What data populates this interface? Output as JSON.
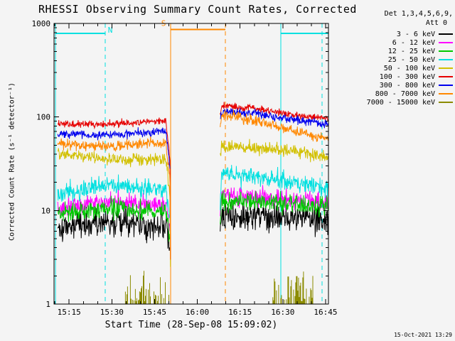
{
  "footer": {
    "timestamp": "15-Oct-2021 13:29"
  },
  "legend": {
    "header_line1": "Det 1,3,4,5,6,9,",
    "header_line2": "Att 0"
  },
  "chart_data": {
    "type": "line",
    "title": "RHESSI Observing Summary Count Rates, Corrected",
    "xlabel": "Start Time (28-Sep-08 15:09:02)",
    "ylabel": "Corrected Count Rate (s⁻¹ detector⁻¹)",
    "y_scale": "log",
    "ylim": [
      1,
      1000
    ],
    "grid": false,
    "legend_position": "top-right",
    "x_time_reference": "minutes after 15:00",
    "x_domain": {
      "t0": 9.7,
      "t1": 106
    },
    "x_ticks": [
      {
        "t": 15,
        "label": "15:15"
      },
      {
        "t": 30,
        "label": "15:30"
      },
      {
        "t": 45,
        "label": "15:45"
      },
      {
        "t": 60,
        "label": "16:00"
      },
      {
        "t": 75,
        "label": "16:15"
      },
      {
        "t": 90,
        "label": "16:30"
      },
      {
        "t": 105,
        "label": "16:45"
      }
    ],
    "y_ticks": [
      {
        "v": 1,
        "label": "1"
      },
      {
        "v": 10,
        "label": "10"
      },
      {
        "v": 100,
        "label": "100"
      },
      {
        "v": 1000,
        "label": "1000"
      }
    ],
    "annotations": {
      "bars": [
        {
          "name": "night-flag-bar-1",
          "color": "#00e0e0",
          "t0": 10.2,
          "t1": 27.7,
          "v": 780
        },
        {
          "name": "saa-flag-bar",
          "color": "#ff8800",
          "t0": 50.6,
          "t1": 69.8,
          "v": 860
        },
        {
          "name": "night-flag-bar-2",
          "color": "#00e0e0",
          "t0": 89.3,
          "t1": 106,
          "v": 780
        }
      ],
      "labels": [
        {
          "text": "N",
          "color": "#00e0e0",
          "t": 28.6,
          "v": 800
        },
        {
          "text": "S",
          "color": "#ff8800",
          "t": 47.3,
          "v": 940
        }
      ],
      "vlines": [
        {
          "t": 10.2,
          "color": "#00e0e0",
          "dashed": false
        },
        {
          "t": 27.7,
          "color": "#00e0e0",
          "dashed": true
        },
        {
          "t": 50.6,
          "color": "#ff8800",
          "dashed": false
        },
        {
          "t": 69.8,
          "color": "#ff8800",
          "dashed": true
        },
        {
          "t": 89.3,
          "color": "#00e0e0",
          "dashed": false
        },
        {
          "t": 103.7,
          "color": "#00e0e0",
          "dashed": true
        }
      ]
    },
    "series": [
      {
        "id": "3-6-kev",
        "label": "3 - 6 keV",
        "color": "#000000",
        "sigma": 0.075,
        "segments": [
          [
            [
              11,
              6.8
            ],
            [
              16,
              7.0
            ],
            [
              20,
              7.2
            ],
            [
              26,
              7.5
            ],
            [
              32,
              7.4
            ],
            [
              38,
              7.2
            ],
            [
              44,
              7.0
            ],
            [
              49,
              6.8
            ],
            [
              50.4,
              4.0
            ]
          ],
          [
            [
              68,
              5.5
            ],
            [
              68.5,
              9.3
            ],
            [
              72,
              9.2
            ],
            [
              78,
              9.0
            ],
            [
              85,
              8.8
            ],
            [
              92,
              8.6
            ],
            [
              99,
              8.3
            ],
            [
              106,
              8.0
            ]
          ]
        ]
      },
      {
        "id": "6-12-kev",
        "label": "6 - 12 keV",
        "color": "#ff00ff",
        "sigma": 0.05,
        "segments": [
          [
            [
              11,
              11.0
            ],
            [
              17,
              11.3
            ],
            [
              22,
              11.8
            ],
            [
              27,
              12.3
            ],
            [
              32,
              12.5
            ],
            [
              37,
              12.2
            ],
            [
              42,
              11.8
            ],
            [
              49,
              11.6
            ],
            [
              50.4,
              6.0
            ]
          ],
          [
            [
              68,
              9.0
            ],
            [
              68.5,
              14.8
            ],
            [
              72,
              14.5
            ],
            [
              78,
              14.2
            ],
            [
              85,
              13.8
            ],
            [
              92,
              13.2
            ],
            [
              99,
              12.6
            ],
            [
              106,
              12.0
            ]
          ]
        ]
      },
      {
        "id": "12-25-kev",
        "label": "12 - 25 keV",
        "color": "#00c800",
        "sigma": 0.05,
        "segments": [
          [
            [
              11,
              9.3
            ],
            [
              18,
              9.8
            ],
            [
              24,
              10.2
            ],
            [
              30,
              10.5
            ],
            [
              36,
              10.4
            ],
            [
              42,
              10.2
            ],
            [
              49,
              10.0
            ],
            [
              50.4,
              5.0
            ]
          ],
          [
            [
              68,
              8.0
            ],
            [
              68.5,
              13.0
            ],
            [
              73,
              12.8
            ],
            [
              80,
              12.6
            ],
            [
              88,
              12.2
            ],
            [
              96,
              11.6
            ],
            [
              106,
              11.0
            ]
          ]
        ]
      },
      {
        "id": "25-50-kev",
        "label": "25 - 50 keV",
        "color": "#00e0e0",
        "sigma": 0.05,
        "segments": [
          [
            [
              11,
              14.5
            ],
            [
              15,
              15.5
            ],
            [
              19,
              16.5
            ],
            [
              23,
              17.5
            ],
            [
              27,
              18.5
            ],
            [
              31,
              18.8
            ],
            [
              35,
              18.3
            ],
            [
              39,
              17.6
            ],
            [
              44,
              17.2
            ],
            [
              49,
              17.0
            ],
            [
              50.4,
              8.0
            ]
          ],
          [
            [
              68,
              13.0
            ],
            [
              68.5,
              24.0
            ],
            [
              72,
              25.0
            ],
            [
              76,
              24.0
            ],
            [
              82,
              22.5
            ],
            [
              90,
              21.0
            ],
            [
              98,
              19.0
            ],
            [
              106,
              17.5
            ]
          ]
        ]
      },
      {
        "id": "50-100-kev",
        "label": "50 - 100 keV",
        "color": "#d2c000",
        "sigma": 0.032,
        "segments": [
          [
            [
              11,
              41
            ],
            [
              15,
              39.5
            ],
            [
              19,
              38
            ],
            [
              24,
              36.5
            ],
            [
              29,
              35
            ],
            [
              35,
              34.5
            ],
            [
              42,
              34.8
            ],
            [
              49,
              35
            ],
            [
              50.4,
              14
            ],
            [
              50.55,
              2.5
            ]
          ],
          [
            [
              68,
              40
            ],
            [
              68.5,
              48
            ],
            [
              72,
              49
            ],
            [
              76,
              48
            ],
            [
              82,
              46
            ],
            [
              90,
              44
            ],
            [
              98,
              41
            ],
            [
              106,
              38
            ]
          ]
        ]
      },
      {
        "id": "100-300-kev",
        "label": "100 - 300 keV",
        "color": "#e60000",
        "sigma": 0.018,
        "segments": [
          [
            [
              11,
              85
            ],
            [
              17,
              84
            ],
            [
              23,
              83
            ],
            [
              29,
              84
            ],
            [
              35,
              86
            ],
            [
              41,
              88
            ],
            [
              46,
              90
            ],
            [
              49,
              90
            ],
            [
              50.4,
              35
            ],
            [
              50.55,
              3
            ]
          ],
          [
            [
              68,
              110
            ],
            [
              68.5,
              128
            ],
            [
              71,
              132
            ],
            [
              74,
              127
            ],
            [
              77,
              124
            ],
            [
              79,
              128
            ],
            [
              81,
              122
            ],
            [
              85,
              116
            ],
            [
              90,
              110
            ],
            [
              96,
              104
            ],
            [
              101,
              99
            ],
            [
              106,
              95
            ]
          ]
        ]
      },
      {
        "id": "300-800-kev",
        "label": "300 - 800 keV",
        "color": "#0000ee",
        "sigma": 0.022,
        "segments": [
          [
            [
              11,
              66
            ],
            [
              17,
              65
            ],
            [
              23,
              64
            ],
            [
              29,
              64.5
            ],
            [
              35,
              66
            ],
            [
              41,
              68
            ],
            [
              49,
              70
            ],
            [
              50.4,
              28
            ]
          ],
          [
            [
              68,
              95
            ],
            [
              68.5,
              112
            ],
            [
              71,
              115
            ],
            [
              74,
              111
            ],
            [
              77,
              108
            ],
            [
              80,
              112
            ],
            [
              83,
              106
            ],
            [
              88,
              100
            ],
            [
              94,
              94
            ],
            [
              100,
              89
            ],
            [
              106,
              85
            ]
          ]
        ]
      },
      {
        "id": "800-7000-kev",
        "label": "800 - 7000 keV",
        "color": "#ff8800",
        "sigma": 0.028,
        "segments": [
          [
            [
              11,
              52
            ],
            [
              17,
              50.5
            ],
            [
              23,
              49.5
            ],
            [
              29,
              49
            ],
            [
              35,
              50
            ],
            [
              41,
              52
            ],
            [
              49,
              53
            ],
            [
              50.4,
              20
            ],
            [
              50.55,
              3
            ]
          ],
          [
            [
              68,
              85
            ],
            [
              68.5,
              100
            ],
            [
              71,
              103
            ],
            [
              75,
              98
            ],
            [
              80,
              92
            ],
            [
              86,
              83
            ],
            [
              92,
              74
            ],
            [
              98,
              66
            ],
            [
              102,
              62
            ],
            [
              106,
              59
            ]
          ]
        ]
      },
      {
        "id": "7000-15000-kev",
        "label": "7000 - 15000 keV",
        "color": "#8b8b00",
        "style": "spikes",
        "value_range": [
          1,
          2.5
        ],
        "windows": [
          [
            34.5,
            50.4
          ],
          [
            86.5,
            100.5
          ]
        ]
      }
    ]
  }
}
